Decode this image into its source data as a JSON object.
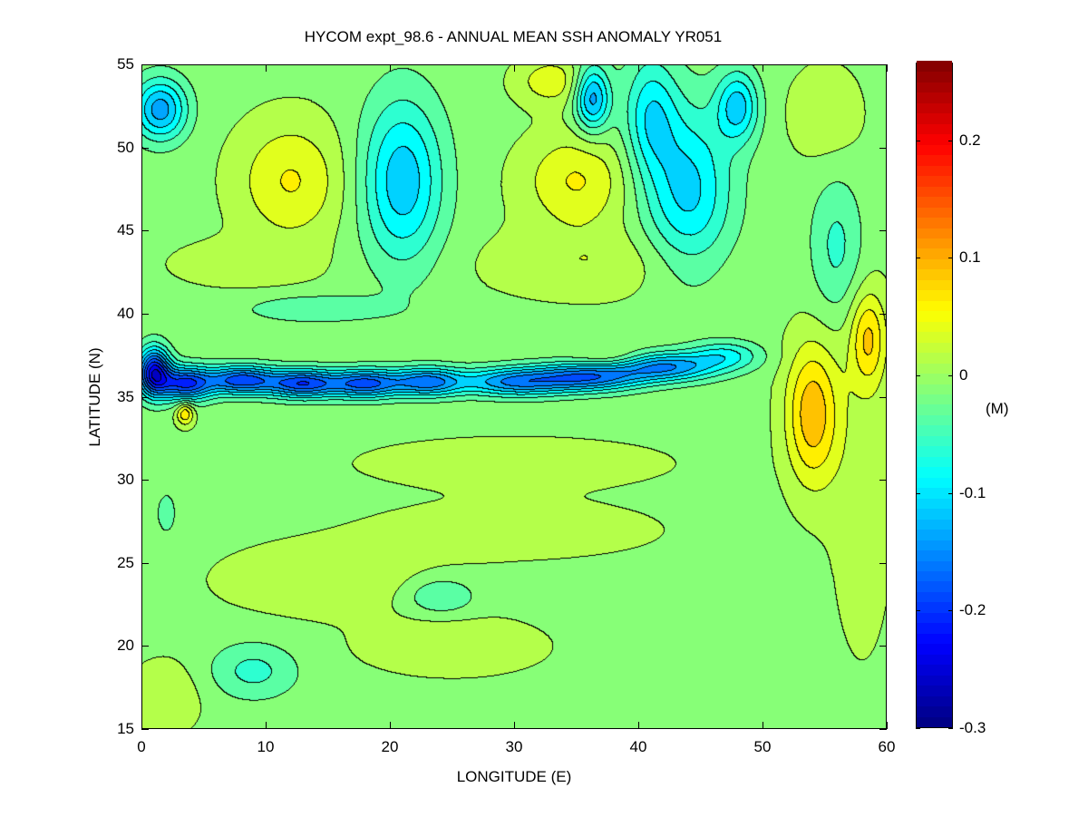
{
  "chart_data": {
    "type": "heatmap",
    "subtype": "filled-contour",
    "title": "HYCOM expt_98.6 - ANNUAL MEAN SSH ANOMALY YR051",
    "xlabel": "LONGITUDE (E)",
    "ylabel": "LATITUDE (N)",
    "xlim": [
      0,
      60
    ],
    "ylim": [
      15,
      55
    ],
    "xticks": [
      "0",
      "10",
      "20",
      "30",
      "40",
      "50",
      "60"
    ],
    "yticks": [
      "15",
      "20",
      "25",
      "30",
      "35",
      "40",
      "45",
      "50",
      "55"
    ],
    "colorbar": {
      "colormap": "jet",
      "range": [
        -0.3,
        0.266
      ],
      "ticks": [
        "-0.3",
        "-0.2",
        "-0.1",
        "0",
        "0.1",
        "0.2"
      ],
      "units": "(M)"
    },
    "contour_interval": 0.025,
    "background_value": -0.008,
    "features": [
      {
        "lon": 1.5,
        "lat": 52.3,
        "amp": -0.13,
        "slon": 1.5,
        "slat": 1.3
      },
      {
        "lon": 21,
        "lat": 48,
        "amp": -0.11,
        "slon": 2.3,
        "slat": 3.5
      },
      {
        "lon": 36.3,
        "lat": 53,
        "amp": -0.13,
        "slon": 1,
        "slat": 1.4
      },
      {
        "lon": 44,
        "lat": 47.5,
        "amp": -0.1,
        "slon": 2.5,
        "slat": 3.5
      },
      {
        "lon": 41,
        "lat": 52,
        "amp": -0.08,
        "slon": 1.5,
        "slat": 2.5
      },
      {
        "lon": 48,
        "lat": 52.5,
        "amp": -0.1,
        "slon": 1.2,
        "slat": 1.5
      },
      {
        "lon": 1,
        "lat": 36.5,
        "amp": -0.22,
        "slon": 0.9,
        "slat": 1
      },
      {
        "lon": 3.5,
        "lat": 35.8,
        "amp": -0.19,
        "slon": 1.5,
        "slat": 0.7
      },
      {
        "lon": 8,
        "lat": 36,
        "amp": -0.18,
        "slon": 2,
        "slat": 0.6
      },
      {
        "lon": 13,
        "lat": 35.8,
        "amp": -0.18,
        "slon": 2,
        "slat": 0.6
      },
      {
        "lon": 18,
        "lat": 35.8,
        "amp": -0.17,
        "slon": 2,
        "slat": 0.6
      },
      {
        "lon": 23,
        "lat": 35.9,
        "amp": -0.15,
        "slon": 2,
        "slat": 0.6
      },
      {
        "lon": 30,
        "lat": 35.9,
        "amp": -0.14,
        "slon": 3,
        "slat": 0.6
      },
      {
        "lon": 36,
        "lat": 36.2,
        "amp": -0.15,
        "slon": 3,
        "slat": 0.6
      },
      {
        "lon": 42,
        "lat": 36.8,
        "amp": -0.14,
        "slon": 3,
        "slat": 0.6
      },
      {
        "lon": 47,
        "lat": 37.5,
        "amp": -0.07,
        "slon": 2,
        "slat": 0.6
      },
      {
        "lon": 9,
        "lat": 18.5,
        "amp": -0.05,
        "slon": 2.5,
        "slat": 1.2
      },
      {
        "lon": 24,
        "lat": 23,
        "amp": -0.05,
        "slon": 2,
        "slat": 0.8
      },
      {
        "lon": 14,
        "lat": 40.3,
        "amp": -0.04,
        "slon": 4,
        "slat": 0.6
      },
      {
        "lon": 56,
        "lat": 44,
        "amp": -0.05,
        "slon": 1.5,
        "slat": 3
      },
      {
        "lon": 2,
        "lat": 28,
        "amp": -0.04,
        "slon": 0.5,
        "slat": 0.8
      },
      {
        "lon": 12,
        "lat": 48,
        "amp": 0.06,
        "slon": 3,
        "slat": 2.5
      },
      {
        "lon": 35,
        "lat": 48,
        "amp": 0.06,
        "slon": 3,
        "slat": 2
      },
      {
        "lon": 33,
        "lat": 54,
        "amp": 0.05,
        "slon": 2,
        "slat": 1
      },
      {
        "lon": 54,
        "lat": 34,
        "amp": 0.1,
        "slon": 1.5,
        "slat": 3
      },
      {
        "lon": 58.5,
        "lat": 38.5,
        "amp": 0.08,
        "slon": 1,
        "slat": 2
      },
      {
        "lon": 38,
        "lat": 37.2,
        "amp": 0.04,
        "slon": 2,
        "slat": 0.5
      },
      {
        "lon": 3.5,
        "lat": 34,
        "amp": 0.08,
        "slon": 0.5,
        "slat": 0.5
      },
      {
        "lon": 55,
        "lat": 52,
        "amp": 0.03,
        "slon": 2,
        "slat": 2
      },
      {
        "lon": 15,
        "lat": 24,
        "amp": 0.03,
        "slon": 6,
        "slat": 1.5
      },
      {
        "lon": 25,
        "lat": 20,
        "amp": 0.03,
        "slon": 5,
        "slat": 1.2
      },
      {
        "lon": 2,
        "lat": 17,
        "amp": 0.03,
        "slon": 2,
        "slat": 1.5
      },
      {
        "lon": 58,
        "lat": 30,
        "amp": 0.02,
        "slon": 2,
        "slat": 8
      },
      {
        "lon": 30,
        "lat": 31,
        "amp": 0.03,
        "slon": 8,
        "slat": 1
      },
      {
        "lon": 30,
        "lat": 27,
        "amp": 0.025,
        "slon": 8,
        "slat": 1.2
      },
      {
        "lon": 8,
        "lat": 43,
        "amp": 0.025,
        "slon": 4,
        "slat": 1
      },
      {
        "lon": 36,
        "lat": 43,
        "amp": 0.03,
        "slon": 6,
        "slat": 1.5
      }
    ]
  }
}
